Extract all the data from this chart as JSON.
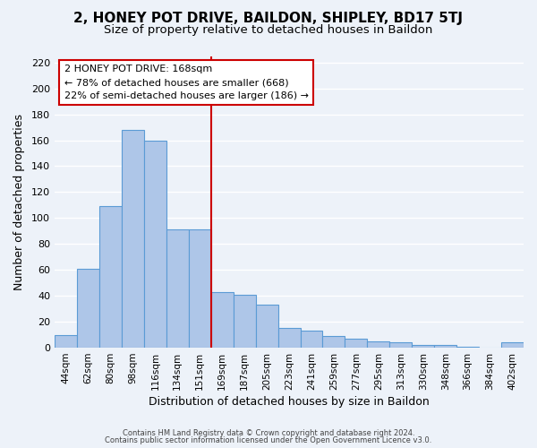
{
  "title": "2, HONEY POT DRIVE, BAILDON, SHIPLEY, BD17 5TJ",
  "subtitle": "Size of property relative to detached houses in Baildon",
  "xlabel": "Distribution of detached houses by size in Baildon",
  "ylabel": "Number of detached properties",
  "categories": [
    "44sqm",
    "62sqm",
    "80sqm",
    "98sqm",
    "116sqm",
    "134sqm",
    "151sqm",
    "169sqm",
    "187sqm",
    "205sqm",
    "223sqm",
    "241sqm",
    "259sqm",
    "277sqm",
    "295sqm",
    "313sqm",
    "330sqm",
    "348sqm",
    "366sqm",
    "384sqm",
    "402sqm"
  ],
  "values": [
    10,
    61,
    109,
    168,
    160,
    91,
    91,
    43,
    41,
    33,
    15,
    13,
    9,
    7,
    5,
    4,
    2,
    2,
    1,
    0,
    4
  ],
  "bar_color": "#aec6e8",
  "bar_edge_color": "#5b9bd5",
  "vline_index": 7,
  "vline_color": "#cc0000",
  "annotation_title": "2 HONEY POT DRIVE: 168sqm",
  "annotation_line1": "← 78% of detached houses are smaller (668)",
  "annotation_line2": "22% of semi-detached houses are larger (186) →",
  "annotation_box_color": "#ffffff",
  "annotation_box_edge": "#cc0000",
  "ylim": [
    0,
    225
  ],
  "yticks": [
    0,
    20,
    40,
    60,
    80,
    100,
    120,
    140,
    160,
    180,
    200,
    220
  ],
  "footnote1": "Contains HM Land Registry data © Crown copyright and database right 2024.",
  "footnote2": "Contains public sector information licensed under the Open Government Licence v3.0.",
  "bg_color": "#edf2f9",
  "grid_color": "#ffffff",
  "title_fontsize": 11,
  "subtitle_fontsize": 9.5
}
